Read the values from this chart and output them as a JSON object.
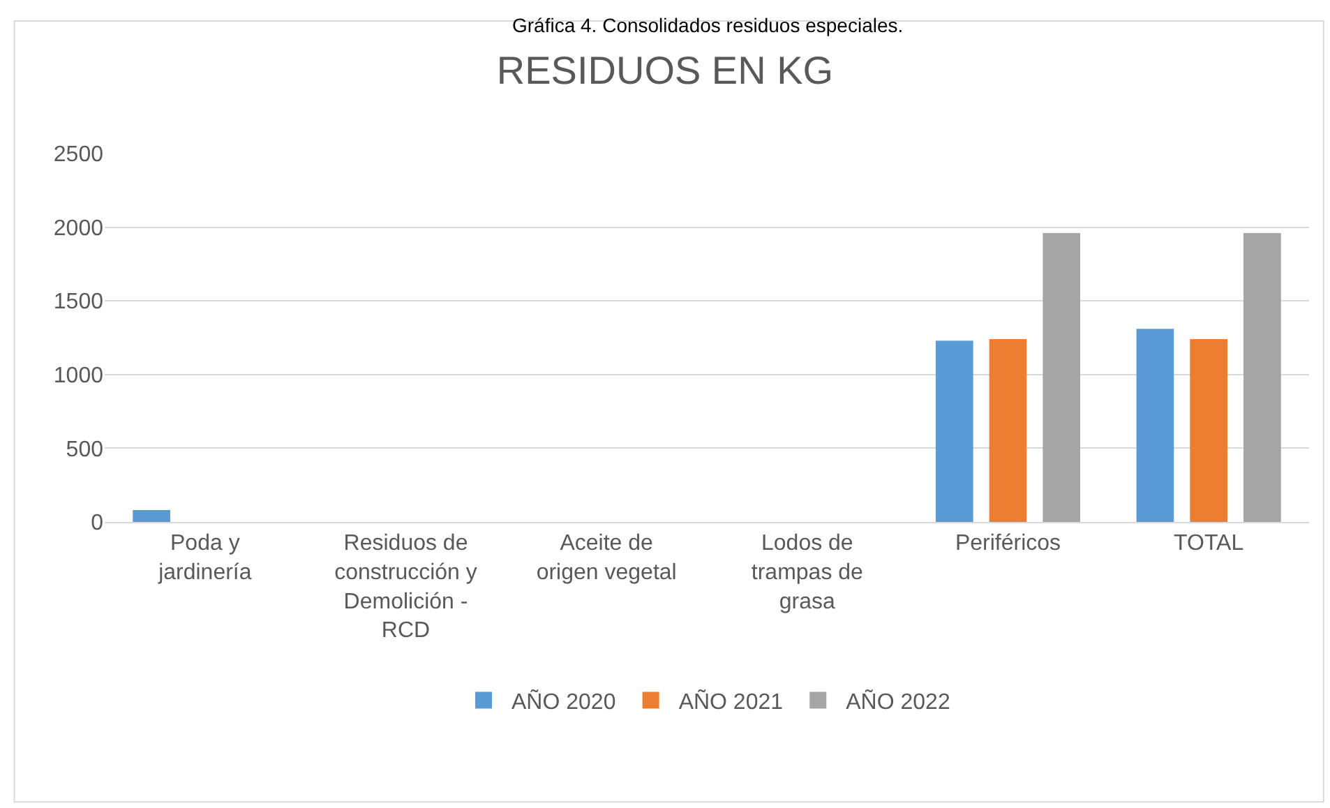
{
  "chart_data": {
    "type": "bar",
    "title": "RESIDUOS EN KG",
    "annotations": [
      "Gráfica 4. Consolidados residuos especiales."
    ],
    "categories": [
      "Poda y jardinería",
      "Residuos de construcción y Demolición - RCD",
      "Aceite de origen vegetal",
      "Lodos de trampas de grasa",
      "Periféricos",
      "TOTAL"
    ],
    "series": [
      {
        "name": "AÑO 2020",
        "color": "#5b9bd5",
        "values": [
          80,
          0,
          0,
          0,
          1230,
          1310
        ]
      },
      {
        "name": "AÑO 2021",
        "color": "#ed7d31",
        "values": [
          0,
          0,
          0,
          0,
          1240,
          1240
        ]
      },
      {
        "name": "AÑO 2022",
        "color": "#a5a5a5",
        "values": [
          0,
          0,
          0,
          0,
          1960,
          1960
        ]
      }
    ],
    "ylim": [
      0,
      2500
    ],
    "yticks": [
      0,
      500,
      1000,
      1500,
      2000,
      2500
    ],
    "grid": "y",
    "legend": "bottom"
  }
}
